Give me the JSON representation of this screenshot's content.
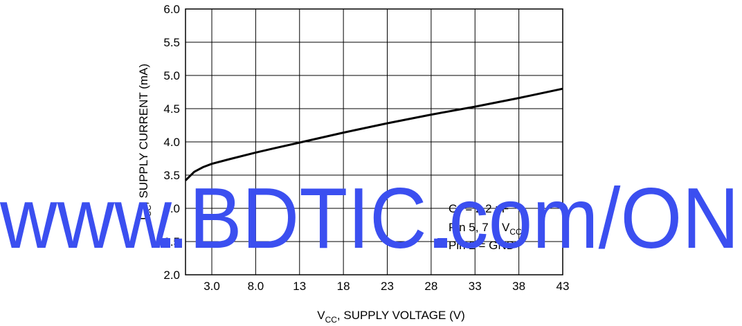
{
  "chart_data": {
    "type": "line",
    "xlabel_main": "V",
    "xlabel_sub": "CC",
    "xlabel_rest": ", SUPPLY VOLTAGE (V)",
    "ylabel_main": "I",
    "ylabel_sub": "CC",
    "ylabel_rest": ", SUPPLY CURRENT (mA)",
    "xlim": [
      0,
      43
    ],
    "ylim": [
      2.0,
      6.0
    ],
    "x_ticks": [
      "3.0",
      "8.0",
      "13",
      "18",
      "23",
      "28",
      "33",
      "38",
      "43"
    ],
    "y_ticks": [
      "2.0",
      "2.5",
      "3.0",
      "3.5",
      "4.0",
      "4.5",
      "5.0",
      "5.5",
      "6.0"
    ],
    "grid": true,
    "series": [
      {
        "x": [
          0,
          1,
          2,
          3,
          5,
          8,
          10,
          13,
          18,
          23,
          28,
          33,
          38,
          43
        ],
        "y": [
          3.42,
          3.55,
          3.62,
          3.67,
          3.74,
          3.84,
          3.9,
          3.99,
          4.14,
          4.28,
          4.41,
          4.53,
          4.66,
          4.8
        ]
      }
    ],
    "annotations": [
      {
        "main": "C",
        "sub": "T",
        "rest": " = 2.2 nF"
      },
      {
        "main": "Pin 5, 7 = V",
        "sub": "CC",
        "rest": ""
      },
      {
        "main": "Pin 2 = GND",
        "sub": "",
        "rest": ""
      }
    ]
  },
  "watermark": {
    "text": "www.BDTIC.com/ON",
    "color": "#3b4ff0"
  }
}
